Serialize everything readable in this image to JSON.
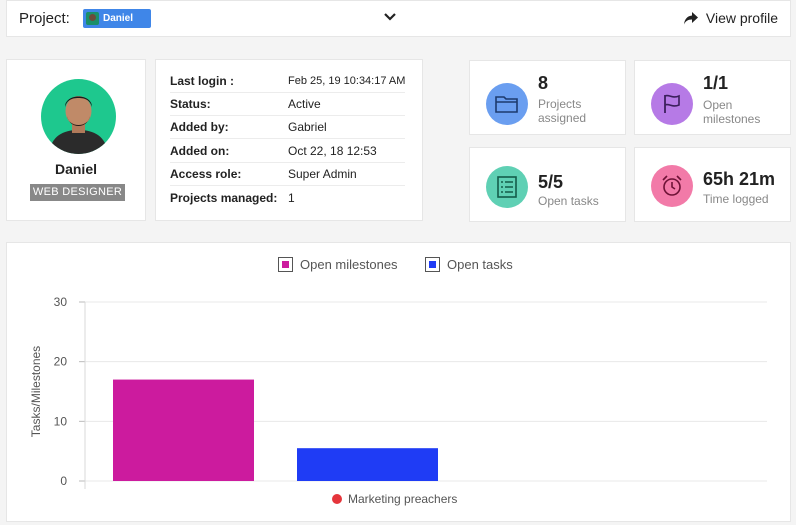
{
  "topbar": {
    "project_label": "Project:",
    "project_selected": "Daniel",
    "view_profile_label": "View profile"
  },
  "profile": {
    "name": "Daniel",
    "role": "WEB DESIGNER"
  },
  "details": [
    {
      "key": "Last login :",
      "value": "Feb 25, 19 10:34:17 AM"
    },
    {
      "key": "Status:",
      "value": "Active"
    },
    {
      "key": "Added by:",
      "value": "Gabriel"
    },
    {
      "key": "Added on:",
      "value": "Oct 22, 18 12:53"
    },
    {
      "key": "Access role:",
      "value": "Super Admin"
    },
    {
      "key": "Projects managed:",
      "value": "1"
    }
  ],
  "stats": {
    "projects": {
      "value": "8",
      "label_line1": "Projects",
      "label_line2": "assigned",
      "icon": "folder-icon",
      "color": "#6a9ef0"
    },
    "milestones": {
      "value": "1/1",
      "label_line1": "Open",
      "label_line2": "milestones",
      "icon": "flag-icon",
      "color": "#b67ae6"
    },
    "tasks": {
      "value": "5/5",
      "label_line1": "Open tasks",
      "label_line2": "",
      "icon": "tasklist-icon",
      "color": "#5fd0b4"
    },
    "time": {
      "value": "65h 21m",
      "label_line1": "Time logged",
      "label_line2": "",
      "icon": "alarm-clock-icon",
      "color": "#f27aa8"
    }
  },
  "chart_data": {
    "type": "bar",
    "categories": [
      "Marketing preachers"
    ],
    "series": [
      {
        "name": "Open milestones",
        "values": [
          17
        ],
        "color": "#cc1b9e"
      },
      {
        "name": "Open tasks",
        "values": [
          5.5
        ],
        "color": "#1f3cf5"
      }
    ],
    "ylabel": "Tasks/Milestones",
    "ylim": [
      0,
      30
    ],
    "yticks": [
      0,
      10,
      20,
      30
    ],
    "grid": true,
    "legend": "top-center",
    "category_marker_color": "#e5353b"
  }
}
